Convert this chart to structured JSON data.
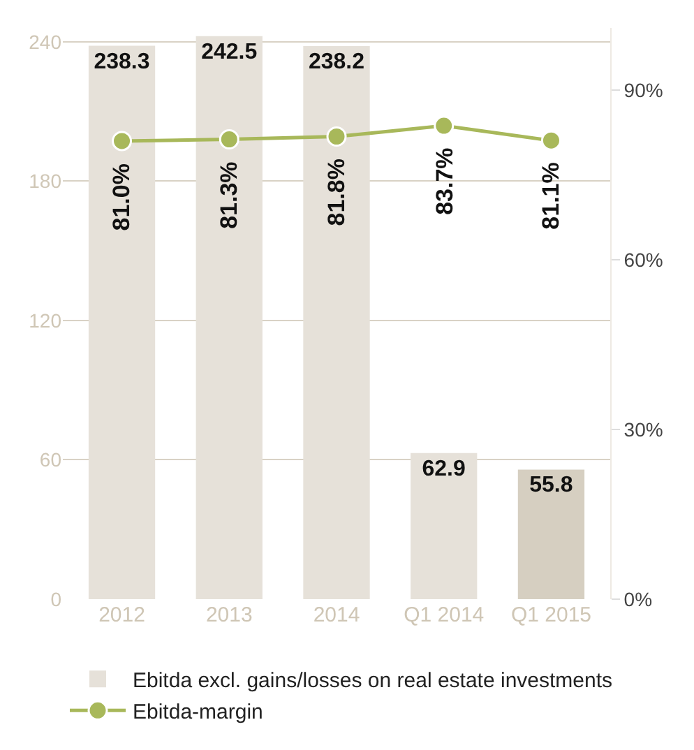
{
  "chart_data": {
    "type": "bar",
    "categories": [
      "2012",
      "2013",
      "2014",
      "Q1 2014",
      "Q1 2015"
    ],
    "series": [
      {
        "name": "Ebitda excl. gains/losses on real estate investments",
        "colors": [
          "#e6e1d9",
          "#e6e1d9",
          "#e6e1d9",
          "#e6e1d9",
          "#d6cfc1"
        ],
        "color": "#d6cfc1",
        "values": [
          238.3,
          242.5,
          238.2,
          62.9,
          55.8
        ],
        "value_labels": [
          "238.3",
          "242.5",
          "238.2",
          "62.9",
          "55.8"
        ]
      },
      {
        "name": "Ebitda-margin",
        "type": "line",
        "axis": "y2",
        "color": "#a8b85a",
        "marker": "circle",
        "values": [
          81.0,
          81.3,
          81.8,
          83.7,
          81.1
        ],
        "value_labels": [
          "81.0%",
          "81.3%",
          "81.8%",
          "83.7%",
          "81.1%"
        ]
      }
    ],
    "ylim": [
      0,
      246
    ],
    "yticks": [
      0,
      60,
      120,
      180,
      240
    ],
    "y2lim": [
      0,
      101
    ],
    "y2ticks": [
      {
        "value": 0,
        "label": "0%"
      },
      {
        "value": 30,
        "label": "30%"
      },
      {
        "value": 60,
        "label": "60%"
      },
      {
        "value": 90,
        "label": "90%"
      }
    ],
    "grid": "y",
    "legend": "bottom"
  }
}
